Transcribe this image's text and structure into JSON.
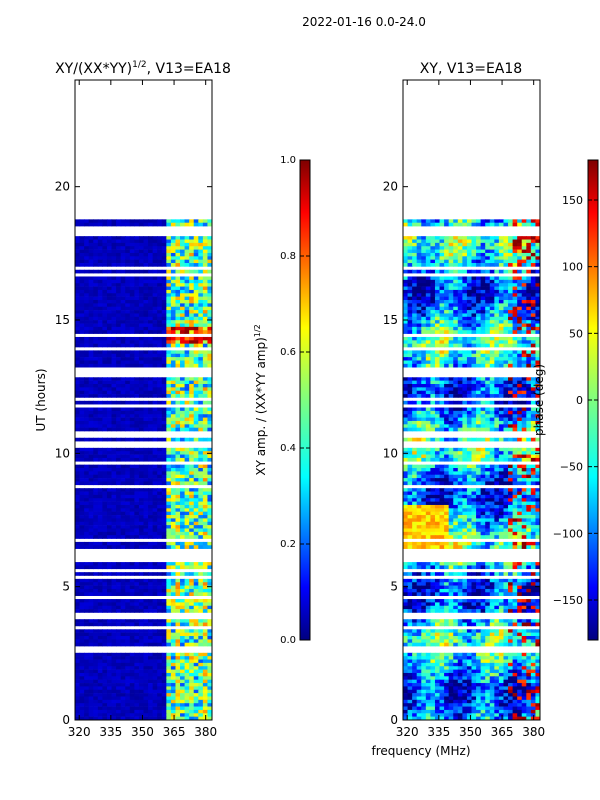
{
  "figure": {
    "suptitle": "2022-01-16 0.0-24.0"
  },
  "chart_data": [
    {
      "type": "heatmap",
      "title": "XY/(XX*YY)^{1/2}, V13=EA18",
      "title_main": "XY/(XX*YY)",
      "title_sup": "1/2",
      "title_tail": ", V13=EA18",
      "xlabel": "",
      "ylabel": "UT (hours)",
      "xlim": [
        318,
        383
      ],
      "ylim": [
        0,
        24
      ],
      "xticks": [
        320,
        335,
        350,
        365,
        380
      ],
      "yticks": [
        0,
        5,
        10,
        15,
        20
      ],
      "data_extent_hours": [
        0,
        18.9
      ],
      "colorbar": {
        "label_main": "XY amp. / (XX*YY amp)",
        "label_sup": "1/2",
        "range": [
          0.0,
          1.0
        ],
        "ticks": [
          "0.0",
          "0.2",
          "0.4",
          "0.6",
          "0.8",
          "1.0"
        ],
        "colormap": "jet"
      }
    },
    {
      "type": "heatmap",
      "title": "XY, V13=EA18",
      "xlabel": "frequency (MHz)",
      "ylabel": "",
      "xlim": [
        318,
        383
      ],
      "ylim": [
        0,
        24
      ],
      "xticks": [
        320,
        335,
        350,
        365,
        380
      ],
      "yticks": [
        0,
        5,
        10,
        15,
        20
      ],
      "data_extent_hours": [
        0,
        18.9
      ],
      "colorbar": {
        "label": "phase (deg)",
        "range": [
          -180,
          180
        ],
        "ticks": [
          "150",
          "100",
          "50",
          "0",
          "−50",
          "−100",
          "−150"
        ],
        "tick_values": [
          150,
          100,
          50,
          0,
          -50,
          -100,
          -150
        ],
        "colormap": "jet"
      }
    }
  ],
  "colors": {
    "jet": [
      "#00007f",
      "#0000ff",
      "#007fff",
      "#00ffff",
      "#7fff7f",
      "#ffff00",
      "#ff7f00",
      "#ff0000",
      "#7f0000"
    ]
  }
}
